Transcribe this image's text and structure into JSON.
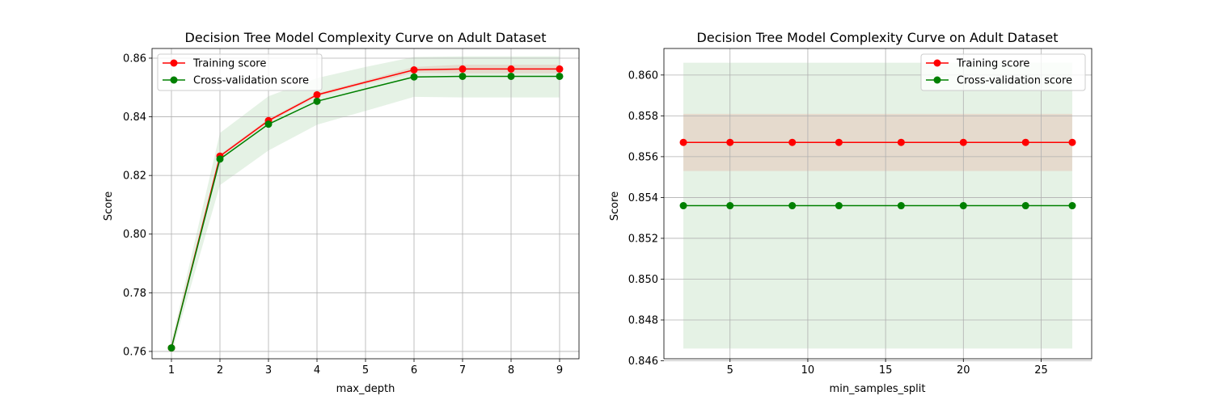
{
  "chart_data": [
    {
      "type": "line",
      "title": "Decision Tree Model Complexity Curve on Adult Dataset",
      "xlabel": "max_depth",
      "ylabel": "Score",
      "xlim": [
        0.6,
        9.4
      ],
      "ylim": [
        0.7575,
        0.8633
      ],
      "xticks": [
        1,
        2,
        3,
        4,
        5,
        6,
        7,
        8,
        9
      ],
      "xtick_labels": [
        "1",
        "2",
        "3",
        "4",
        "5",
        "6",
        "7",
        "8",
        "9"
      ],
      "yticks": [
        0.76,
        0.78,
        0.8,
        0.82,
        0.84,
        0.86
      ],
      "ytick_labels": [
        "0.76",
        "0.78",
        "0.80",
        "0.82",
        "0.84",
        "0.86"
      ],
      "grid": true,
      "legend_position": "upper-left",
      "x": [
        1,
        2,
        3,
        4,
        5,
        6,
        7,
        8,
        9
      ],
      "series": [
        {
          "name": "Training score",
          "color": "#ff0000",
          "markers_x": [
            1,
            2,
            3,
            4,
            6,
            7,
            8,
            9
          ],
          "values": [
            0.7612,
            0.8266,
            0.8387,
            0.8475,
            0.8518,
            0.856,
            0.8563,
            0.8563,
            0.8563
          ],
          "band_upper": [
            0.7614,
            0.8272,
            0.8393,
            0.8481,
            0.8524,
            0.857,
            0.8578,
            0.8578,
            0.8578
          ],
          "band_lower": [
            0.761,
            0.826,
            0.8381,
            0.8469,
            0.8512,
            0.855,
            0.8548,
            0.8548,
            0.8548
          ]
        },
        {
          "name": "Cross-validation score",
          "color": "#008000",
          "markers_x": [
            1,
            2,
            3,
            4,
            6,
            7,
            8,
            9
          ],
          "values": [
            0.7612,
            0.8256,
            0.8375,
            0.8453,
            0.8495,
            0.8536,
            0.8538,
            0.8538,
            0.8538
          ],
          "band_upper": [
            0.7632,
            0.8345,
            0.847,
            0.8532,
            0.857,
            0.8604,
            0.8606,
            0.8606,
            0.8606
          ],
          "band_lower": [
            0.7592,
            0.8167,
            0.8285,
            0.8373,
            0.842,
            0.8468,
            0.8466,
            0.8466,
            0.8466
          ]
        }
      ]
    },
    {
      "type": "line",
      "title": "Decision Tree Model Complexity Curve on Adult Dataset",
      "xlabel": "min_samples_split",
      "ylabel": "Score",
      "xlim": [
        0.75,
        28.25
      ],
      "ylim": [
        0.8461,
        0.8613
      ],
      "xticks": [
        5,
        10,
        15,
        20,
        25
      ],
      "xtick_labels": [
        "5",
        "10",
        "15",
        "20",
        "25"
      ],
      "yticks": [
        0.846,
        0.848,
        0.85,
        0.852,
        0.854,
        0.856,
        0.858,
        0.86
      ],
      "ytick_labels": [
        "0.846",
        "0.848",
        "0.850",
        "0.852",
        "0.854",
        "0.856",
        "0.858",
        "0.860"
      ],
      "grid": true,
      "legend_position": "upper-right",
      "x": [
        2,
        5,
        9,
        12,
        16,
        20,
        24,
        27
      ],
      "series": [
        {
          "name": "Training score",
          "color": "#ff0000",
          "values": [
            0.8567,
            0.8567,
            0.8567,
            0.8567,
            0.8567,
            0.8567,
            0.8567,
            0.8567
          ],
          "band_upper": [
            0.8581,
            0.8581,
            0.8581,
            0.8581,
            0.8581,
            0.8581,
            0.8581,
            0.8581
          ],
          "band_lower": [
            0.8553,
            0.8553,
            0.8553,
            0.8553,
            0.8553,
            0.8553,
            0.8553,
            0.8553
          ]
        },
        {
          "name": "Cross-validation score",
          "color": "#008000",
          "values": [
            0.8536,
            0.8536,
            0.8536,
            0.8536,
            0.8536,
            0.8536,
            0.8536,
            0.8536
          ],
          "band_upper": [
            0.8606,
            0.8606,
            0.8606,
            0.8606,
            0.8606,
            0.8606,
            0.8606,
            0.8606
          ],
          "band_lower": [
            0.8466,
            0.8466,
            0.8466,
            0.8466,
            0.8466,
            0.8466,
            0.8466,
            0.8466
          ]
        }
      ]
    }
  ]
}
